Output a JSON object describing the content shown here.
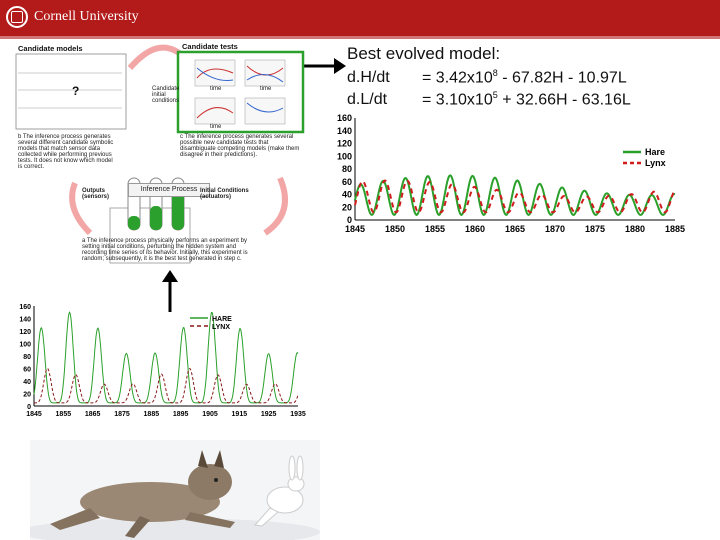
{
  "header": {
    "brand": "Cornell University",
    "brand_color": "#b31b1b"
  },
  "model": {
    "title": "Best evolved model:",
    "eq1_lhs": "d.H/dt",
    "eq1_rhs": "= 3.42x10",
    "eq1_exp": "8",
    "eq1_tail": " - 67.82H - 10.97L",
    "eq2_lhs": "d.L/dt",
    "eq2_rhs": "= 3.10x10",
    "eq2_exp": "5",
    "eq2_tail": " + 32.66H - 63.16L"
  },
  "diagram": {
    "candidate_models": "Candidate models",
    "candidate_tests": "Candidate tests",
    "inference_process": "Inference Process",
    "b_text": "b   The inference process generates several different candidate symbolic models that match sensor data collected while performing previous tests. It does not know which model is correct.",
    "c_text": "c   The inference process generates several possible new candidate tests that disambiguate competing models (make them disagree in their predictions).",
    "a_text": "a   The inference process physically performs an experiment by setting initial conditions, perturbing the hidden system and recording time series of its behavior. Initially, this experiment is random; subsequently, it is the best test generated in step c.",
    "outputs": "Outputs (sensors)",
    "initial_conditions": "Initial Conditions (actuators)",
    "candidate_initial": "Candidate initial conditions",
    "time": "time",
    "question": "?"
  },
  "chart_data": [
    {
      "type": "line",
      "xlim": [
        1845,
        1935
      ],
      "ylim": [
        0,
        160
      ],
      "yticks": [
        "160",
        "140",
        "120",
        "100",
        "80",
        "60",
        "40",
        "20",
        "0"
      ],
      "xticks": [
        "1845",
        "1855",
        "1865",
        "1875",
        "1885",
        "1895",
        "1905",
        "1915",
        "1925",
        "1935"
      ],
      "legend": "top-right",
      "series": [
        {
          "name": "HARE",
          "color": "#2aa02a",
          "style": "solid",
          "period": 9.7,
          "min": 5,
          "max": 150,
          "phase": 0
        },
        {
          "name": "LYNX",
          "color": "#8b1a1a",
          "style": "dashed",
          "period": 9.7,
          "min": 5,
          "max": 60,
          "phase": 1.4
        }
      ]
    },
    {
      "type": "line",
      "xlim": [
        1845,
        1885
      ],
      "ylim": [
        0,
        160
      ],
      "yticks": [
        "160",
        "140",
        "120",
        "100",
        "80",
        "60",
        "40",
        "20",
        "0"
      ],
      "xticks": [
        "1845",
        "1850",
        "1855",
        "1860",
        "1865",
        "1870",
        "1875",
        "1880",
        "1885"
      ],
      "legend": "top-right",
      "series": [
        {
          "name": "Hare",
          "color": "#2aa02a",
          "style": "solid",
          "period": 2.8,
          "min": 8,
          "max": 70,
          "phase": 0
        },
        {
          "name": "Lynx",
          "color": "#d01c1c",
          "style": "dashed",
          "period": 2.8,
          "min": 12,
          "max": 62,
          "phase": 0.55
        }
      ]
    }
  ]
}
